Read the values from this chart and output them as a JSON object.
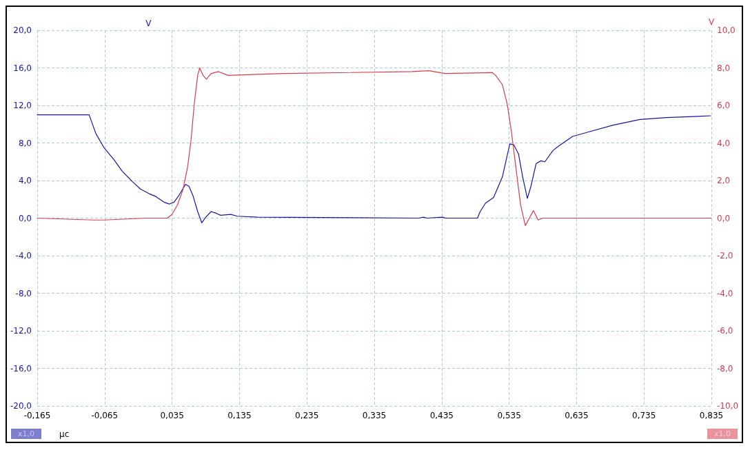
{
  "chart_data": {
    "type": "line",
    "xlabel": "μc",
    "ylabel": "V",
    "y2label": "V",
    "x": [
      -0.165,
      -0.088,
      -0.078,
      -0.066,
      -0.052,
      -0.039,
      -0.024,
      -0.012,
      0.001,
      0.011,
      0.023,
      0.031,
      0.038,
      0.045,
      0.055,
      0.06,
      0.066,
      0.073,
      0.079,
      0.085,
      0.093,
      0.101,
      0.107,
      0.122,
      0.132,
      0.162,
      0.401,
      0.408,
      0.413,
      0.436,
      0.441,
      0.488,
      0.492,
      0.5,
      0.512,
      0.525,
      0.536,
      0.542,
      0.549,
      0.555,
      0.562,
      0.567,
      0.575,
      0.582,
      0.588,
      0.6,
      0.609,
      0.629,
      0.649,
      0.689,
      0.729,
      0.768,
      0.834
    ],
    "series": [
      {
        "color": "#1414a8",
        "values": [
          11.0,
          11.0,
          9.0,
          7.5,
          6.3,
          5.0,
          3.9,
          3.1,
          2.6,
          2.3,
          1.7,
          1.5,
          1.7,
          2.4,
          3.6,
          3.4,
          2.4,
          0.7,
          -0.5,
          0.1,
          0.7,
          0.5,
          0.3,
          0.4,
          0.2,
          0.1,
          0.0,
          0.1,
          0.0,
          0.1,
          0.0,
          0.0,
          0.7,
          1.6,
          2.2,
          4.4,
          7.9,
          7.8,
          6.8,
          4.4,
          2.1,
          3.3,
          5.8,
          6.1,
          6.0,
          7.2,
          7.7,
          8.7,
          9.1,
          9.9,
          10.5,
          10.7,
          10.9
        ]
      },
      {
        "color": "#d83a4a",
        "axis": "y2",
        "x": [
          -0.165,
          -0.082,
          -0.066,
          -0.003,
          0.028,
          0.035,
          0.043,
          0.051,
          0.058,
          0.063,
          0.068,
          0.073,
          0.076,
          0.081,
          0.086,
          0.093,
          0.104,
          0.118,
          0.2,
          0.391,
          0.416,
          0.44,
          0.51,
          0.515,
          0.525,
          0.532,
          0.538,
          0.545,
          0.552,
          0.559,
          0.565,
          0.571,
          0.578,
          0.585,
          0.835
        ],
        "values": [
          0.0,
          -0.1,
          -0.1,
          0.0,
          0.0,
          0.2,
          0.7,
          1.5,
          2.7,
          4.1,
          6.1,
          7.6,
          8.0,
          7.6,
          7.4,
          7.7,
          7.8,
          7.6,
          7.7,
          7.8,
          7.85,
          7.7,
          7.75,
          7.6,
          7.1,
          6.1,
          4.7,
          2.7,
          0.7,
          -0.4,
          0.0,
          0.4,
          -0.1,
          0.0,
          0.0
        ]
      }
    ],
    "xlim": [
      -0.165,
      0.835
    ],
    "xticks": [
      {
        "value": -0.165,
        "label": "-0,165"
      },
      {
        "value": -0.065,
        "label": "-0,065"
      },
      {
        "value": 0.035,
        "label": "0,035"
      },
      {
        "value": 0.135,
        "label": "0,135"
      },
      {
        "value": 0.235,
        "label": "0,235"
      },
      {
        "value": 0.335,
        "label": "0,335"
      },
      {
        "value": 0.435,
        "label": "0,435"
      },
      {
        "value": 0.535,
        "label": "0,535"
      },
      {
        "value": 0.635,
        "label": "0,635"
      },
      {
        "value": 0.735,
        "label": "0,735"
      },
      {
        "value": 0.835,
        "label": "0,835"
      }
    ],
    "ylim": [
      -20,
      20
    ],
    "yticks": [
      {
        "value": -20,
        "label": "-20,0"
      },
      {
        "value": -16,
        "label": "-16,0"
      },
      {
        "value": -12,
        "label": "-12,0"
      },
      {
        "value": -8,
        "label": "-8,0"
      },
      {
        "value": -4,
        "label": "-4,0"
      },
      {
        "value": 0,
        "label": "0,0"
      },
      {
        "value": 4,
        "label": "4,0"
      },
      {
        "value": 8,
        "label": "8,0"
      },
      {
        "value": 12,
        "label": "12,0"
      },
      {
        "value": 16,
        "label": "16,0"
      },
      {
        "value": 20,
        "label": "20,0"
      }
    ],
    "y2lim": [
      -10,
      10
    ],
    "y2ticks": [
      {
        "value": -10,
        "label": "-10,0"
      },
      {
        "value": -8,
        "label": "-8,0"
      },
      {
        "value": -6,
        "label": "-6,0"
      },
      {
        "value": -4,
        "label": "-4,0"
      },
      {
        "value": -2,
        "label": "-2,0"
      },
      {
        "value": 0,
        "label": "0,0"
      },
      {
        "value": 2,
        "label": "2,0"
      },
      {
        "value": 4,
        "label": "4,0"
      },
      {
        "value": 6,
        "label": "6,0"
      },
      {
        "value": 8,
        "label": "8,0"
      },
      {
        "value": 10,
        "label": "10,0"
      }
    ],
    "annotations": [
      "x1,0",
      "x1,0"
    ],
    "grid": true,
    "marker": "none",
    "line_style": "solid"
  }
}
